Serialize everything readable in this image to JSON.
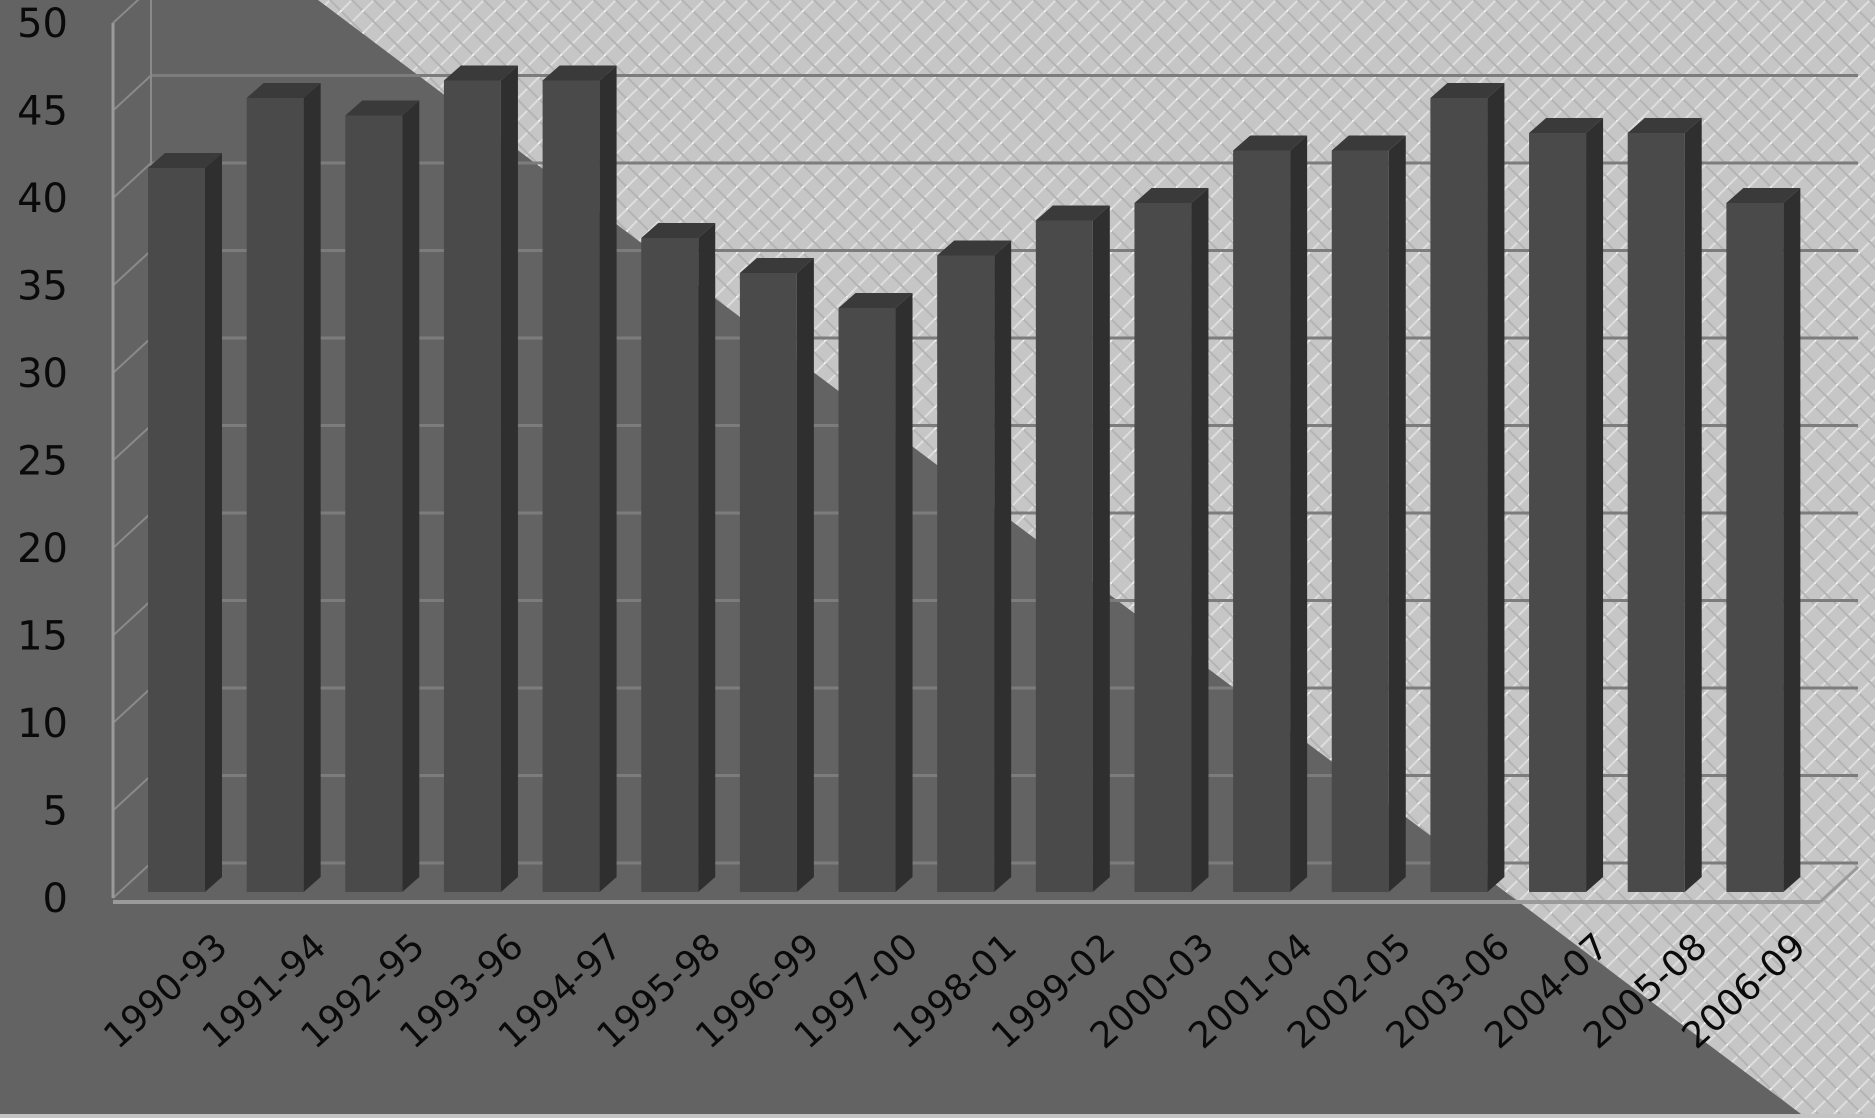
{
  "chart_data": {
    "type": "bar",
    "title": "",
    "xlabel": "",
    "ylabel": "",
    "categories": [
      "1990-93",
      "1991-94",
      "1992-95",
      "1993-96",
      "1994-97",
      "1995-98",
      "1996-99",
      "1997-00",
      "1998-01",
      "1999-02",
      "2000-03",
      "2001-04",
      "2002-05",
      "2003-06",
      "2004-07",
      "2005-08",
      "2006-09"
    ],
    "series": [
      {
        "values": [
          42,
          46,
          45,
          47,
          47,
          38,
          36,
          34,
          37,
          39,
          40,
          43,
          43,
          46,
          44,
          44,
          40
        ]
      }
    ],
    "ylim": [
      0,
      50
    ],
    "yticks": [
      0,
      5,
      10,
      15,
      20,
      25,
      30,
      35,
      40,
      45,
      50
    ],
    "grid": true,
    "legend": "none",
    "style": "3d-column",
    "colors": {
      "bar_front": "#4a4a4a",
      "bar_side": "#2f2f2f",
      "bar_top": "#3a3a3a",
      "gridline": "#7c7c7c",
      "background_dark": "#636363",
      "background_light": "#c4c4c4",
      "tick_text": "#0a0a0a"
    }
  }
}
